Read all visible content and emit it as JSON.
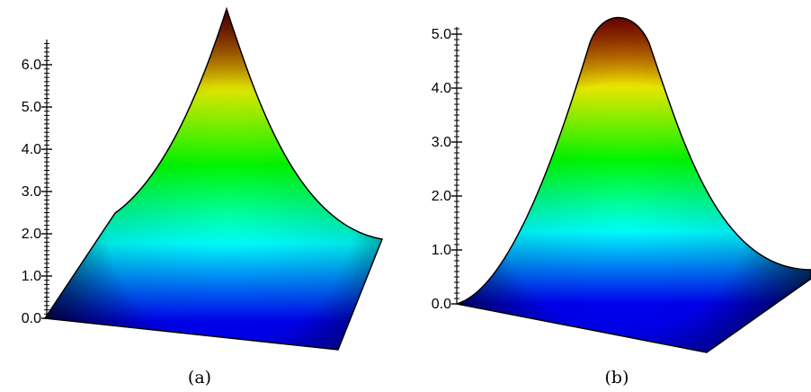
{
  "chart_data": [
    {
      "type": "surface",
      "panel": "(a)",
      "zaxis": {
        "ticks": [
          0.0,
          1.0,
          2.0,
          3.0,
          4.0,
          5.0,
          6.0
        ],
        "tick_labels": [
          "0.0",
          "1.0",
          "2.0",
          "3.0",
          "4.0",
          "5.0",
          "6.0"
        ],
        "range": [
          0,
          6.9
        ]
      },
      "peak": 6.9,
      "colormap": [
        "#0000ff",
        "#00ffff",
        "#00ff00",
        "#ffff00",
        "#ff0000"
      ]
    },
    {
      "type": "surface",
      "panel": "(b)",
      "zaxis": {
        "ticks": [
          0.0,
          1.0,
          2.0,
          3.0,
          4.0,
          5.0
        ],
        "tick_labels": [
          "0.0",
          "1.0",
          "2.0",
          "3.0",
          "4.0",
          "5.0"
        ],
        "range": [
          0,
          5.3
        ]
      },
      "peak": 5.3,
      "colormap": [
        "#0000ff",
        "#00ffff",
        "#00ff00",
        "#ffff00",
        "#ff0000"
      ]
    }
  ]
}
